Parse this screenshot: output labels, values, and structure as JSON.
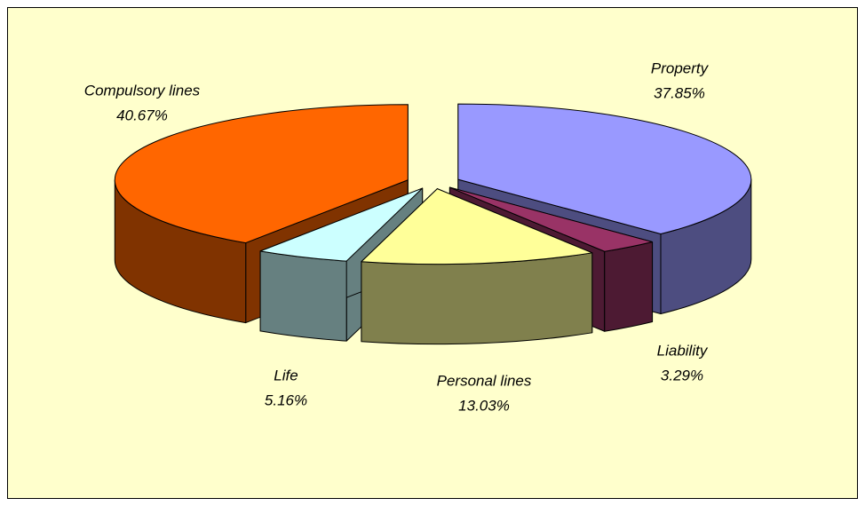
{
  "chart_data": {
    "type": "pie3d",
    "categories": [
      "Property",
      "Liability",
      "Personal lines",
      "Life",
      "Compulsory lines"
    ],
    "values": [
      37.85,
      3.29,
      13.03,
      5.16,
      40.67
    ],
    "value_labels": [
      "37.85%",
      "3.29%",
      "13.03%",
      "5.16%",
      "40.67%"
    ],
    "colors": [
      "#9999ff",
      "#993366",
      "#ffff99",
      "#ccffff",
      "#ff6600"
    ]
  }
}
